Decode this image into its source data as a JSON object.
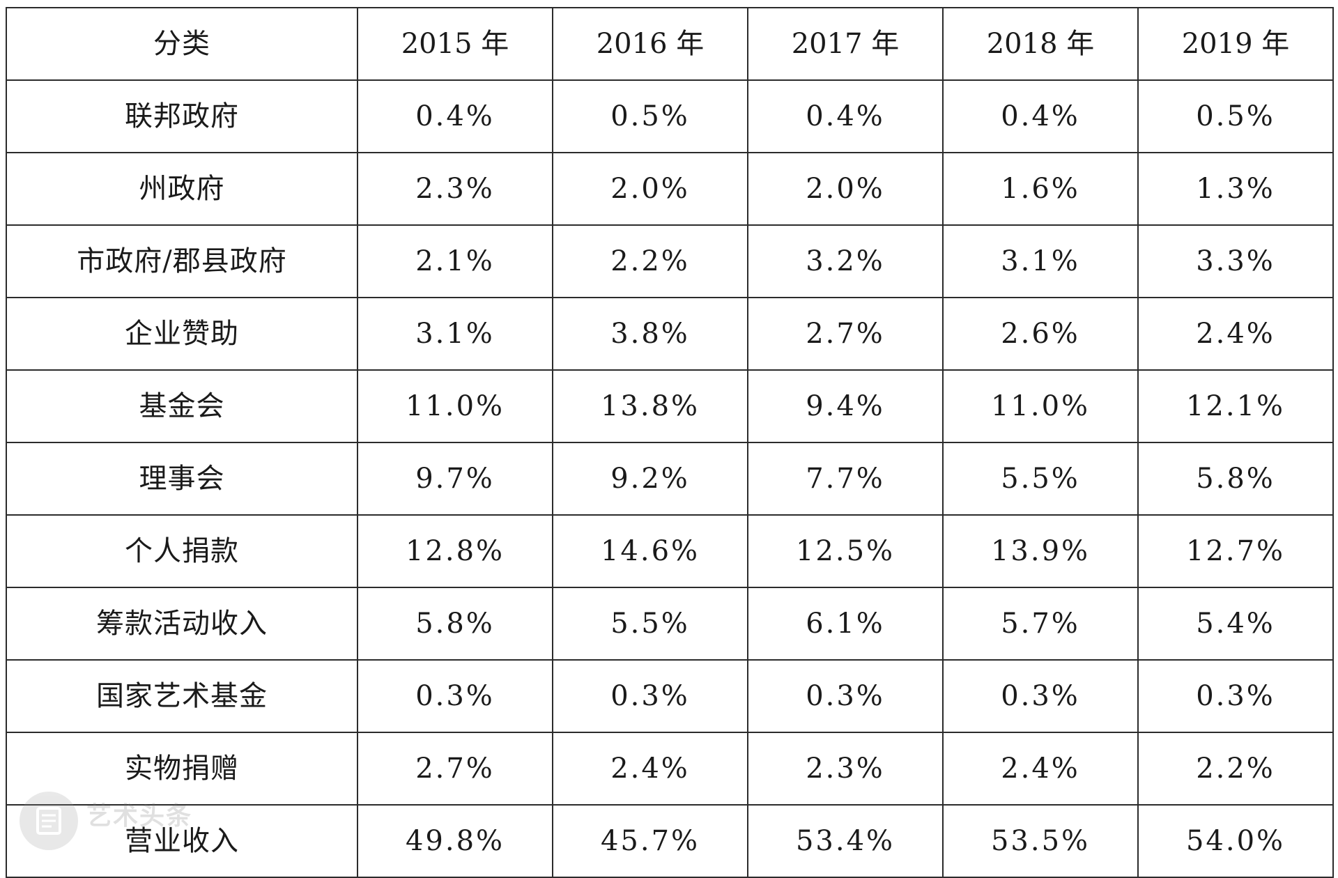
{
  "table": {
    "headers": [
      "分类",
      "2015 年",
      "2016 年",
      "2017 年",
      "2018 年",
      "2019 年"
    ],
    "rows": [
      {
        "category": "联邦政府",
        "values": [
          "0.4%",
          "0.5%",
          "0.4%",
          "0.4%",
          "0.5%"
        ]
      },
      {
        "category": "州政府",
        "values": [
          "2.3%",
          "2.0%",
          "2.0%",
          "1.6%",
          "1.3%"
        ]
      },
      {
        "category": "市政府/郡县政府",
        "values": [
          "2.1%",
          "2.2%",
          "3.2%",
          "3.1%",
          "3.3%"
        ]
      },
      {
        "category": "企业赞助",
        "values": [
          "3.1%",
          "3.8%",
          "2.7%",
          "2.6%",
          "2.4%"
        ]
      },
      {
        "category": "基金会",
        "values": [
          "11.0%",
          "13.8%",
          "9.4%",
          "11.0%",
          "12.1%"
        ]
      },
      {
        "category": "理事会",
        "values": [
          "9.7%",
          "9.2%",
          "7.7%",
          "5.5%",
          "5.8%"
        ]
      },
      {
        "category": "个人捐款",
        "values": [
          "12.8%",
          "14.6%",
          "12.5%",
          "13.9%",
          "12.7%"
        ]
      },
      {
        "category": "筹款活动收入",
        "values": [
          "5.8%",
          "5.5%",
          "6.1%",
          "5.7%",
          "5.4%"
        ]
      },
      {
        "category": "国家艺术基金",
        "values": [
          "0.3%",
          "0.3%",
          "0.3%",
          "0.3%",
          "0.3%"
        ]
      },
      {
        "category": "实物捐赠",
        "values": [
          "2.7%",
          "2.4%",
          "2.3%",
          "2.4%",
          "2.2%"
        ]
      },
      {
        "category": "营业收入",
        "values": [
          "49.8%",
          "45.7%",
          "53.4%",
          "53.5%",
          "54.0%"
        ]
      }
    ]
  },
  "watermark": {
    "icon": "document-icon",
    "text": "艺术头条"
  }
}
